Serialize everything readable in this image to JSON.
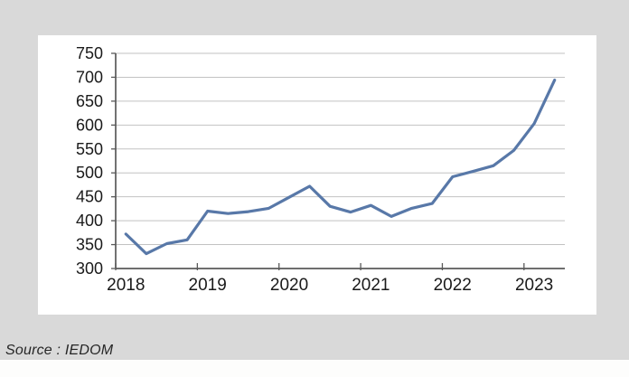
{
  "page": {
    "background": "#d9d9d9",
    "panel_background": "#ffffff",
    "bottom_strip_background": "#fdfdfc"
  },
  "source": {
    "label": "Source : IEDOM",
    "color": "#262626"
  },
  "chart_data": {
    "type": "line",
    "title": "",
    "xlabel": "",
    "ylabel": "",
    "x_tick_labels": [
      "2018",
      "2019",
      "2020",
      "2021",
      "2022",
      "2023"
    ],
    "categories": [
      "2018-Q1",
      "2018-Q2",
      "2018-Q3",
      "2018-Q4",
      "2019-Q1",
      "2019-Q2",
      "2019-Q3",
      "2019-Q4",
      "2020-Q1",
      "2020-Q2",
      "2020-Q3",
      "2020-Q4",
      "2021-Q1",
      "2021-Q2",
      "2021-Q3",
      "2021-Q4",
      "2022-Q1",
      "2022-Q2",
      "2022-Q3",
      "2022-Q4",
      "2023-Q1",
      "2023-Q2"
    ],
    "series": [
      {
        "name": "value",
        "color": "#5878a8",
        "values": [
          372,
          331,
          352,
          360,
          420,
          415,
          419,
          426,
          449,
          472,
          430,
          418,
          432,
          409,
          426,
          436,
          492,
          503,
          515,
          547,
          603,
          694
        ]
      }
    ],
    "ylim": [
      300,
      750
    ],
    "ytick_step": 50,
    "grid": "horizontal-only",
    "legend": "none",
    "colors": {
      "grid": "#c2c2c2",
      "axis": "#595959",
      "text": "#1a1a1a"
    },
    "font_sizes": {
      "y_ticks": 18,
      "x_ticks": 19
    }
  }
}
